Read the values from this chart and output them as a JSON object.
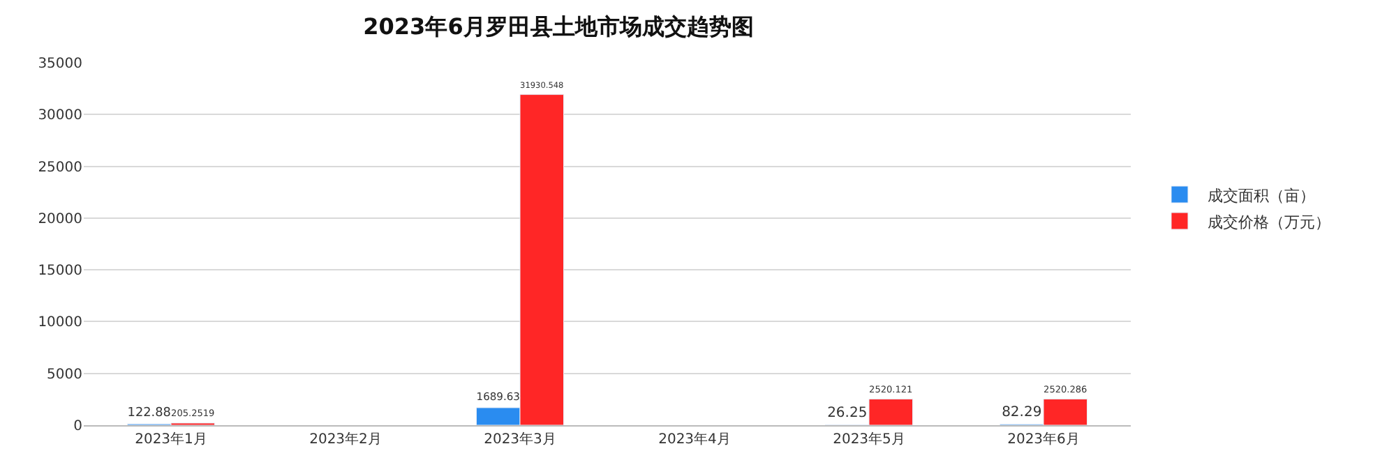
{
  "chart_data": {
    "type": "bar",
    "title": "2023年6月罗田县土地市场成交趋势图",
    "categories": [
      "2023年1月",
      "2023年2月",
      "2023年3月",
      "2023年4月",
      "2023年5月",
      "2023年6月"
    ],
    "series": [
      {
        "name": "成交面积（亩）",
        "color": "#2a8cf0",
        "values": [
          122.88,
          null,
          1689.63,
          null,
          26.25,
          82.29
        ]
      },
      {
        "name": "成交价格（万元）",
        "color": "#ff2626",
        "values": [
          205.2519,
          null,
          31930.548,
          null,
          2520.121,
          2520.286
        ]
      }
    ],
    "ylim": [
      0,
      35000
    ],
    "yticks": [
      0,
      5000,
      10000,
      15000,
      20000,
      25000,
      30000,
      35000
    ],
    "grid": "y",
    "legend": "right",
    "data_labels": true
  }
}
